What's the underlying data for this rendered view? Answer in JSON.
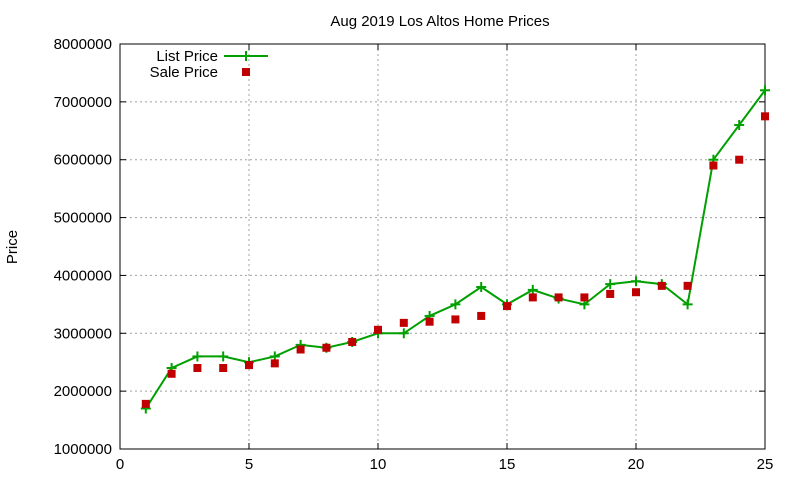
{
  "chart_data": {
    "type": "line",
    "title": "Aug 2019 Los Altos Home Prices",
    "xlabel": "",
    "ylabel": "Price",
    "xlim": [
      0,
      25
    ],
    "ylim": [
      1000000,
      8000000
    ],
    "x_ticks": [
      0,
      5,
      10,
      15,
      20,
      25
    ],
    "y_ticks": [
      1000000,
      2000000,
      3000000,
      4000000,
      5000000,
      6000000,
      7000000,
      8000000
    ],
    "grid": true,
    "legend_position": "top-left",
    "x": [
      1,
      2,
      3,
      4,
      5,
      6,
      7,
      8,
      9,
      10,
      11,
      12,
      13,
      14,
      15,
      16,
      17,
      18,
      19,
      20,
      21,
      22,
      23,
      24,
      25
    ],
    "series": [
      {
        "name": "List Price",
        "style": "line-with-plus-markers",
        "color": "#00a000",
        "values": [
          1700000,
          2400000,
          2600000,
          2600000,
          2500000,
          2600000,
          2800000,
          2750000,
          2850000,
          3000000,
          3000000,
          3300000,
          3500000,
          3800000,
          3500000,
          3750000,
          3600000,
          3500000,
          3850000,
          3900000,
          3850000,
          3500000,
          6000000,
          6600000,
          7200000
        ]
      },
      {
        "name": "Sale Price",
        "style": "square-markers",
        "color": "#c00000",
        "values": [
          1780000,
          2300000,
          2400000,
          2400000,
          2450000,
          2480000,
          2720000,
          2750000,
          2850000,
          3060000,
          3180000,
          3200000,
          3240000,
          3300000,
          3470000,
          3620000,
          3620000,
          3620000,
          3680000,
          3710000,
          3820000,
          3820000,
          5900000,
          6000000,
          6750000
        ]
      }
    ]
  }
}
